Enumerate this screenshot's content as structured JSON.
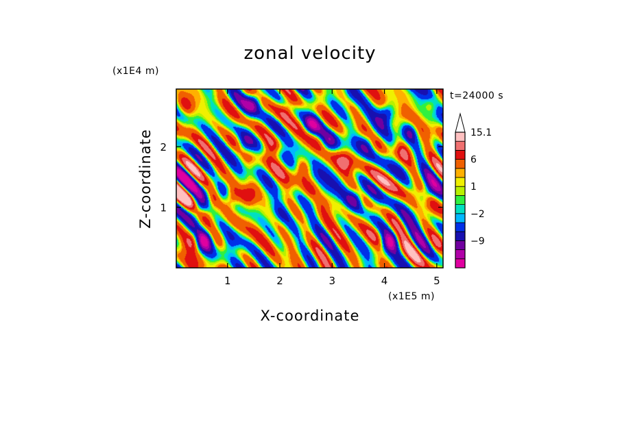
{
  "chart_data": {
    "type": "heatmap",
    "title": "zonal velocity",
    "xlabel": "X-coordinate",
    "ylabel": "Z-coordinate",
    "x_unit": "(x1E5 m)",
    "y_unit": "(x1E4 m)",
    "time_label": "t=24000 s",
    "xlim": [
      0.02,
      5.12
    ],
    "ylim": [
      0.0,
      2.95
    ],
    "x_ticks": [
      "1",
      "2",
      "3",
      "4",
      "5"
    ],
    "x_tick_values": [
      1,
      2,
      3,
      4,
      5
    ],
    "y_ticks": [
      "1",
      "2"
    ],
    "y_tick_values": [
      1,
      2
    ],
    "colorbar": {
      "levels": [
        -15,
        -12,
        -9,
        -6,
        -3,
        -2,
        -1,
        0,
        1,
        2,
        3,
        6,
        9,
        12,
        15.1
      ],
      "labels": [
        "15.1",
        "6",
        "1",
        "−2",
        "−9"
      ],
      "label_values": [
        15.1,
        6,
        1,
        -2,
        -9
      ],
      "colors": [
        "#e000a0",
        "#b000a8",
        "#7000a0",
        "#1810b0",
        "#0030e8",
        "#00b8ff",
        "#00e0c0",
        "#30f040",
        "#b8f000",
        "#f0f000",
        "#ffb000",
        "#f06000",
        "#e01010",
        "#f07070",
        "#ffc0c0"
      ],
      "extend_top": true
    },
    "features": [
      {
        "x": 0.45,
        "z": 1.0,
        "u": -11
      },
      {
        "x": 0.55,
        "z": 0.45,
        "u": -12
      },
      {
        "x": 0.9,
        "z": 1.25,
        "u": -8
      },
      {
        "x": 1.5,
        "z": 2.75,
        "u": -12
      },
      {
        "x": 1.3,
        "z": 2.0,
        "u": -8
      },
      {
        "x": 2.6,
        "z": 2.35,
        "u": -10
      },
      {
        "x": 2.95,
        "z": 2.05,
        "u": -8
      },
      {
        "x": 3.7,
        "z": 2.1,
        "u": -7
      },
      {
        "x": 3.45,
        "z": 1.15,
        "u": -9
      },
      {
        "x": 4.05,
        "z": 2.55,
        "u": -10
      },
      {
        "x": 4.1,
        "z": 0.4,
        "u": -13
      },
      {
        "x": 4.5,
        "z": 2.25,
        "u": -8
      },
      {
        "x": 4.8,
        "z": 1.2,
        "u": -9
      },
      {
        "x": 0.75,
        "z": 1.15,
        "u": 9
      },
      {
        "x": 1.05,
        "z": 1.15,
        "u": 7
      },
      {
        "x": 1.4,
        "z": 1.2,
        "u": 7
      },
      {
        "x": 2.45,
        "z": 1.65,
        "u": 7
      },
      {
        "x": 3.25,
        "z": 1.75,
        "u": 6
      },
      {
        "x": 1.85,
        "z": 2.0,
        "u": 6
      },
      {
        "x": 0.2,
        "z": 2.7,
        "u": 6
      },
      {
        "x": 4.35,
        "z": 1.9,
        "u": 6
      },
      {
        "x": 0.35,
        "z": 0.45,
        "u": 7
      },
      {
        "x": 2.15,
        "z": 2.65,
        "u": 5
      },
      {
        "x": 2.7,
        "z": 1.15,
        "u": -4
      },
      {
        "x": 1.0,
        "z": 0.35,
        "u": -4
      },
      {
        "x": 3.1,
        "z": 0.35,
        "u": 1.5
      },
      {
        "x": 3.8,
        "z": 0.55,
        "u": 1.5
      },
      {
        "x": 2.0,
        "z": 0.9,
        "u": -3
      },
      {
        "x": 3.3,
        "z": 2.8,
        "u": -3
      },
      {
        "x": 5.0,
        "z": 0.4,
        "u": 4
      },
      {
        "x": 4.9,
        "z": 2.7,
        "u": 5
      }
    ]
  }
}
